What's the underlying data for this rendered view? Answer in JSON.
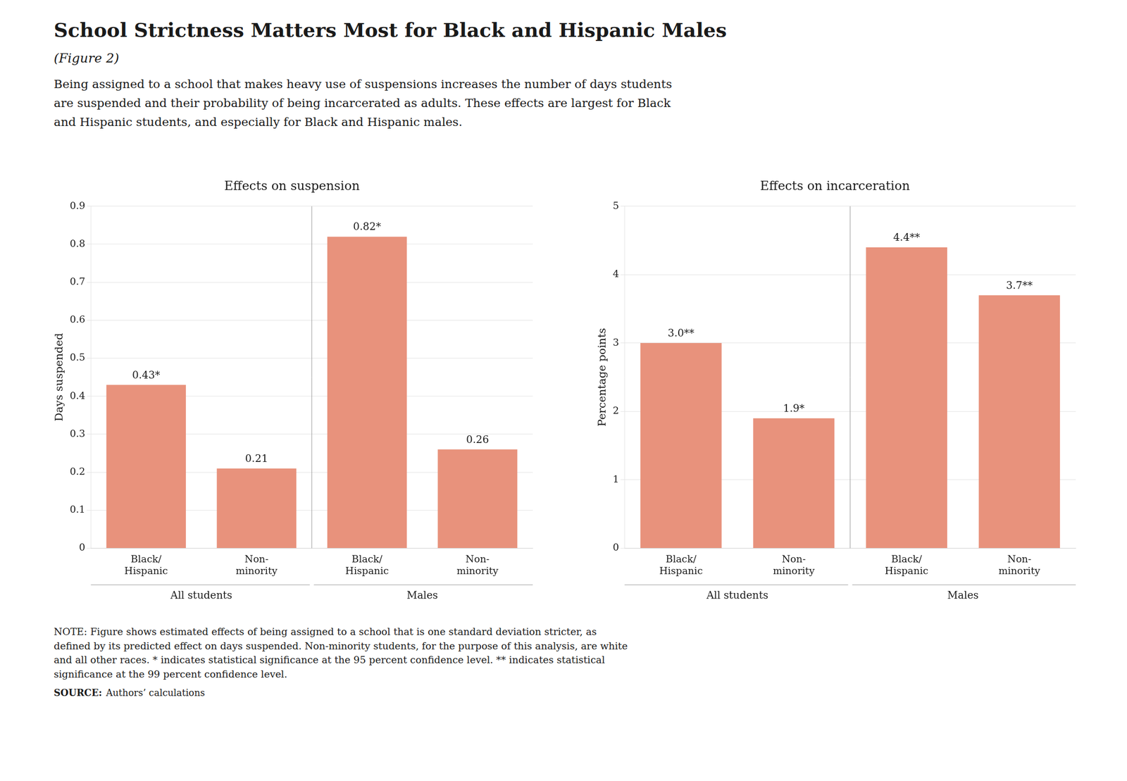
{
  "title": "School Strictness Matters Most for Black and Hispanic Males",
  "subtitle": "(Figure 2)",
  "description": "Being assigned to a school that makes heavy use of suspensions increases the number of days students\nare suspended and their probability of being incarcerated as adults. These effects are largest for Black\nand Hispanic students, and especially for Black and Hispanic males.",
  "notes": [
    "NOTE: Figure shows estimated effects of being assigned to a school that is one standard deviation stricter, as",
    "defined by its predicted effect on days suspended. Non-minority students, for the purpose of this analysis, are white",
    "and all other races. * indicates statistical significance at the 95 percent confidence level. ** indicates statistical",
    "significance at the 99 percent confidence level."
  ],
  "source_label": "SOURCE:",
  "source": "Authors’ calculations",
  "chart_data": [
    {
      "type": "bar",
      "title": "Effects on suspension",
      "y_label": "Days suspended",
      "categories": [
        "Black/\nHispanic",
        "Non-\nminority",
        "Black/\nHispanic",
        "Non-\nminority"
      ],
      "values": [
        0.43,
        0.21,
        0.82,
        0.26
      ],
      "value_labels": [
        "0.43*",
        "0.21",
        "0.82*",
        "0.26"
      ],
      "data_labels": true,
      "groups": [
        "All students",
        "Males"
      ],
      "color": "#e8927c",
      "ylim": [
        0,
        0.9
      ],
      "yticks": [
        0,
        0.1,
        0.2,
        0.3,
        0.4,
        0.5,
        0.6,
        0.7,
        0.8,
        0.9
      ],
      "grid": true
    },
    {
      "type": "bar",
      "title": "Effects on incarceration",
      "y_label": "Percentage points",
      "categories": [
        "Black/\nHispanic",
        "Non-\nminority",
        "Black/\nHispanic",
        "Non-\nminority"
      ],
      "values": [
        3.0,
        1.9,
        4.4,
        3.7
      ],
      "value_labels": [
        "3.0**",
        "1.9*",
        "4.4**",
        "3.7**"
      ],
      "data_labels": true,
      "groups": [
        "All students",
        "Males"
      ],
      "color": "#e8927c",
      "ylim": [
        0,
        5
      ],
      "yticks": [
        0,
        1,
        2,
        3,
        4,
        5
      ],
      "grid": true
    }
  ]
}
